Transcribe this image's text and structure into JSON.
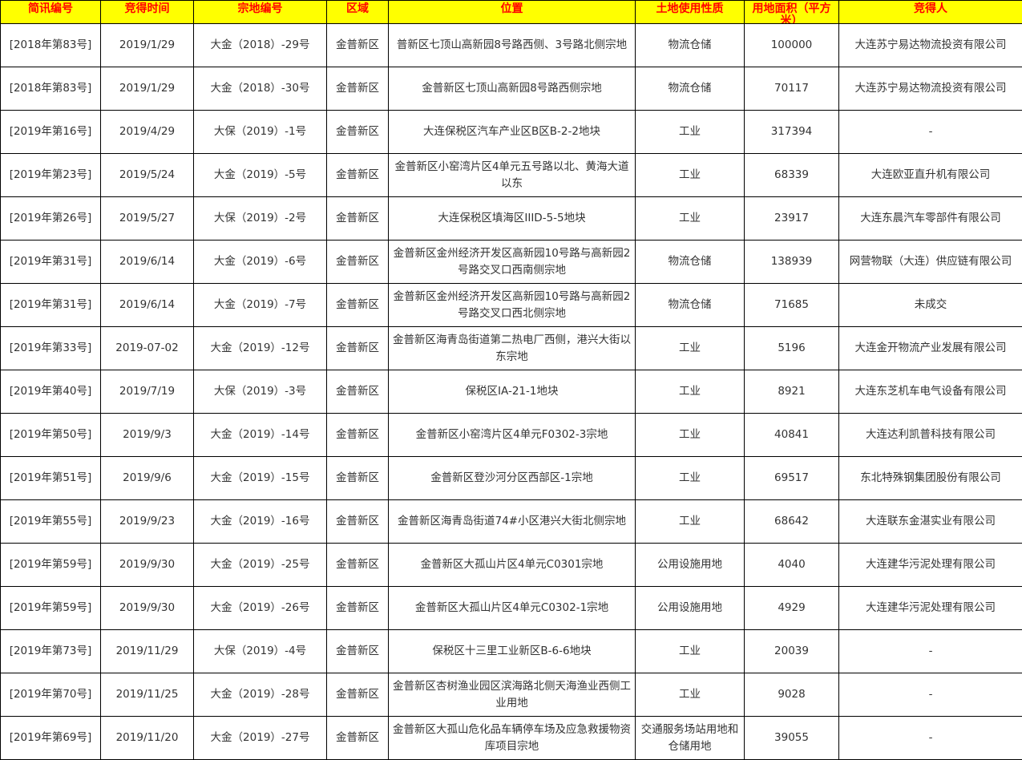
{
  "headers": [
    "简讯编号",
    "竞得时间",
    "宗地编号",
    "区域",
    "位置",
    "土地使用性质",
    "用地面积（平方米）",
    "竞得人"
  ],
  "rows": [
    [
      "[2018年第83号]",
      "2019/1/29",
      "大金（2018）-29号",
      "金普新区",
      "普新区七顶山高新园8号路西侧、3号路北侧宗地",
      "物流仓储",
      "100000",
      "大连苏宁易达物流投资有限公司"
    ],
    [
      "[2018年第83号]",
      "2019/1/29",
      "大金（2018）-30号",
      "金普新区",
      "金普新区七顶山高新园8号路西侧宗地",
      "物流仓储",
      "70117",
      "大连苏宁易达物流投资有限公司"
    ],
    [
      "[2019年第16号]",
      "2019/4/29",
      "大保（2019）-1号",
      "金普新区",
      "大连保税区汽车产业区B区B-2-2地块",
      "工业",
      "317394",
      "-"
    ],
    [
      "[2019年第23号]",
      "2019/5/24",
      "大金（2019）-5号",
      "金普新区",
      "金普新区小窑湾片区4单元五号路以北、黄海大道以东",
      "工业",
      "68339",
      "大连欧亚直升机有限公司"
    ],
    [
      "[2019年第26号]",
      "2019/5/27",
      "大保（2019）-2号",
      "金普新区",
      "大连保税区填海区IIID-5-5地块",
      "工业",
      "23917",
      "大连东晨汽车零部件有限公司"
    ],
    [
      "[2019年第31号]",
      "2019/6/14",
      "大金（2019）-6号",
      "金普新区",
      "金普新区金州经济开发区高新园10号路与高新园2号路交叉口西南侧宗地",
      "物流仓储",
      "138939",
      "网营物联（大连）供应链有限公司"
    ],
    [
      "[2019年第31号]",
      "2019/6/14",
      "大金（2019）-7号",
      "金普新区",
      "金普新区金州经济开发区高新园10号路与高新园2号路交叉口西北侧宗地",
      "物流仓储",
      "71685",
      "未成交"
    ],
    [
      "[2019年第33号]",
      "2019-07-02",
      "大金（2019）-12号",
      "金普新区",
      "金普新区海青岛街道第二热电厂西侧，港兴大街以东宗地",
      "工业",
      "5196",
      "大连金开物流产业发展有限公司"
    ],
    [
      "[2019年第40号]",
      "2019/7/19",
      "大保（2019）-3号",
      "金普新区",
      "保税区IA-21-1地块",
      "工业",
      "8921",
      "大连东芝机车电气设备有限公司"
    ],
    [
      "[2019年第50号]",
      "2019/9/3",
      "大金（2019）-14号",
      "金普新区",
      "金普新区小窑湾片区4单元F0302-3宗地",
      "工业",
      "40841",
      "大连达利凯普科技有限公司"
    ],
    [
      "[2019年第51号]",
      "2019/9/6",
      "大金（2019）-15号",
      "金普新区",
      "金普新区登沙河分区西部区-1宗地",
      "工业",
      "69517",
      "东北特殊钢集团股份有限公司"
    ],
    [
      "[2019年第55号]",
      "2019/9/23",
      "大金（2019）-16号",
      "金普新区",
      "金普新区海青岛街道74#小区港兴大街北侧宗地",
      "工业",
      "68642",
      "大连联东金湛实业有限公司"
    ],
    [
      "[2019年第59号]",
      "2019/9/30",
      "大金（2019）-25号",
      "金普新区",
      "金普新区大孤山片区4单元C0301宗地",
      "公用设施用地",
      "4040",
      "大连建华污泥处理有限公司"
    ],
    [
      "[2019年第59号]",
      "2019/9/30",
      "大金（2019）-26号",
      "金普新区",
      "金普新区大孤山片区4单元C0302-1宗地",
      "公用设施用地",
      "4929",
      "大连建华污泥处理有限公司"
    ],
    [
      "[2019年第73号]",
      "2019/11/29",
      "大保（2019）-4号",
      "金普新区",
      "保税区十三里工业新区B-6-6地块",
      "工业",
      "20039",
      "-"
    ],
    [
      "[2019年第70号]",
      "2019/11/25",
      "大金（2019）-28号",
      "金普新区",
      "金普新区杏树渔业园区滨海路北侧天海渔业西侧工业用地",
      "工业",
      "9028",
      "-"
    ],
    [
      "[2019年第69号]",
      "2019/11/20",
      "大金（2019）-27号",
      "金普新区",
      "金普新区大孤山危化品车辆停车场及应急救援物资库项目宗地",
      "交通服务场站用地和仓储用地",
      "39055",
      "-"
    ]
  ]
}
